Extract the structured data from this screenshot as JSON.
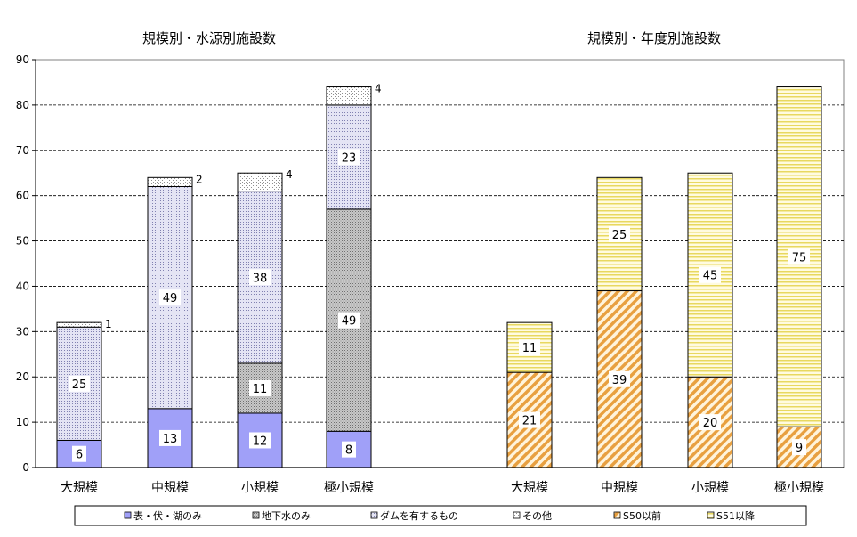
{
  "colors": {
    "surface": "#a0a0f8",
    "groundwater": "#c8c8c8",
    "dam": "#e4e4f4",
    "other": "#ffffff",
    "before_s50": "#f4c070",
    "after_s51": "#fff8b8",
    "grid": "#000000"
  },
  "legend": {
    "items": [
      {
        "label": "表・伏・湖のみ",
        "color": "#a0a0f8",
        "pattern": "solid"
      },
      {
        "label": "地下水のみ",
        "color": "#c8c8c8",
        "pattern": "dots-dense"
      },
      {
        "label": "ダムを有するもの",
        "color": "#e4e4f4",
        "pattern": "dots-sparse"
      },
      {
        "label": "その他",
        "color": "#ffffff",
        "pattern": "solid"
      },
      {
        "label": "S50以前",
        "color": "#f4c070",
        "pattern": "diagonal"
      },
      {
        "label": "S51以降",
        "color": "#fff8b8",
        "pattern": "horizontal"
      }
    ]
  },
  "chart_data": {
    "type": "bar",
    "stacked": true,
    "ylim": [
      0,
      90
    ],
    "yticks": [
      0,
      10,
      20,
      30,
      40,
      50,
      60,
      70,
      80,
      90
    ],
    "grid": "horizontal-dashed",
    "legend_position": "bottom",
    "panels": [
      {
        "title": "規模別・水源別施設数",
        "categories": [
          "大規模",
          "中規模",
          "小規模",
          "極小規模"
        ],
        "series": [
          {
            "name": "表・伏・湖のみ",
            "values": [
              6,
              13,
              12,
              8
            ]
          },
          {
            "name": "地下水のみ",
            "values": [
              0,
              0,
              11,
              49
            ]
          },
          {
            "name": "ダムを有するもの",
            "values": [
              25,
              49,
              38,
              23
            ]
          },
          {
            "name": "その他",
            "values": [
              1,
              2,
              4,
              4
            ]
          }
        ]
      },
      {
        "title": "規模別・年度別施設数",
        "categories": [
          "大規模",
          "中規模",
          "小規模",
          "極小規模"
        ],
        "series": [
          {
            "name": "S50以前",
            "values": [
              21,
              39,
              20,
              9
            ]
          },
          {
            "name": "S51以降",
            "values": [
              11,
              25,
              45,
              75
            ]
          }
        ]
      }
    ]
  }
}
